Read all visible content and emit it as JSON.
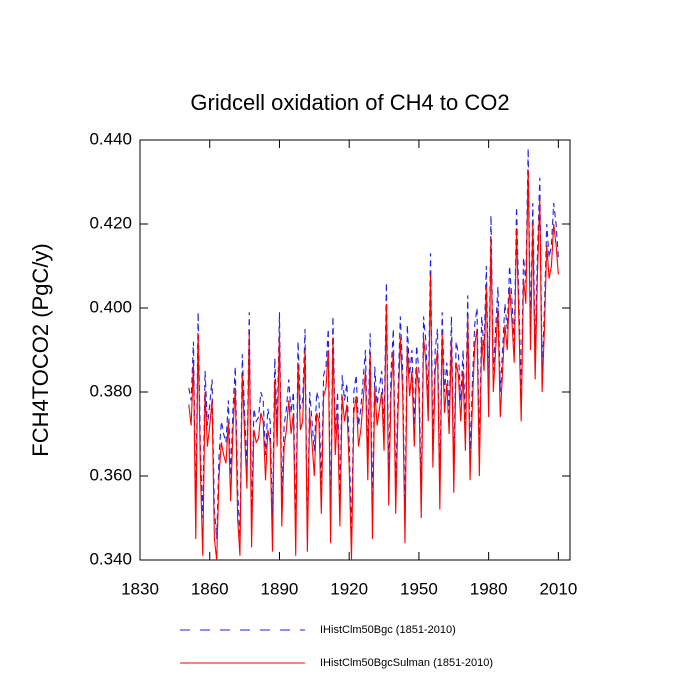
{
  "chart_data": {
    "type": "line",
    "title": "Gridcell oxidation of CH4 to CO2",
    "y_label": "FCH4TOCO2  (PgC/y)",
    "xlim": [
      1830,
      2015
    ],
    "ylim": [
      0.34,
      0.44
    ],
    "xticks": [
      1830,
      1860,
      1890,
      1920,
      1950,
      1980,
      2010
    ],
    "yticks": [
      {
        "value": 0.34,
        "label": "0.340"
      },
      {
        "value": 0.36,
        "label": "0.360"
      },
      {
        "value": 0.38,
        "label": "0.380"
      },
      {
        "value": 0.4,
        "label": "0.400"
      },
      {
        "value": 0.42,
        "label": "0.420"
      },
      {
        "value": 0.44,
        "label": "0.440"
      }
    ],
    "x": [
      1851,
      1852,
      1853,
      1854,
      1855,
      1856,
      1857,
      1858,
      1859,
      1860,
      1861,
      1862,
      1863,
      1864,
      1865,
      1866,
      1867,
      1868,
      1869,
      1870,
      1871,
      1872,
      1873,
      1874,
      1875,
      1876,
      1877,
      1878,
      1879,
      1880,
      1881,
      1882,
      1883,
      1884,
      1885,
      1886,
      1887,
      1888,
      1889,
      1890,
      1891,
      1892,
      1893,
      1894,
      1895,
      1896,
      1897,
      1898,
      1899,
      1900,
      1901,
      1902,
      1903,
      1904,
      1905,
      1906,
      1907,
      1908,
      1909,
      1910,
      1911,
      1912,
      1913,
      1914,
      1915,
      1916,
      1917,
      1918,
      1919,
      1920,
      1921,
      1922,
      1923,
      1924,
      1925,
      1926,
      1927,
      1928,
      1929,
      1930,
      1931,
      1932,
      1933,
      1934,
      1935,
      1936,
      1937,
      1938,
      1939,
      1940,
      1941,
      1942,
      1943,
      1944,
      1945,
      1946,
      1947,
      1948,
      1949,
      1950,
      1951,
      1952,
      1953,
      1954,
      1955,
      1956,
      1957,
      1958,
      1959,
      1960,
      1961,
      1962,
      1963,
      1964,
      1965,
      1966,
      1967,
      1968,
      1969,
      1970,
      1971,
      1972,
      1973,
      1974,
      1975,
      1976,
      1977,
      1978,
      1979,
      1980,
      1981,
      1982,
      1983,
      1984,
      1985,
      1986,
      1987,
      1988,
      1989,
      1990,
      1991,
      1992,
      1993,
      1994,
      1995,
      1996,
      1997,
      1998,
      1999,
      2000,
      2001,
      2002,
      2003,
      2004,
      2005,
      2006,
      2007,
      2008,
      2009,
      2010
    ],
    "series": [
      {
        "name": "IHistClm50Bgc (1851-2010)",
        "color": "#2020e0",
        "dashed": true,
        "values": [
          0.381,
          0.378,
          0.392,
          0.352,
          0.399,
          0.366,
          0.35,
          0.385,
          0.372,
          0.377,
          0.383,
          0.352,
          0.345,
          0.365,
          0.373,
          0.37,
          0.368,
          0.378,
          0.36,
          0.376,
          0.386,
          0.357,
          0.345,
          0.389,
          0.375,
          0.362,
          0.399,
          0.35,
          0.376,
          0.373,
          0.374,
          0.38,
          0.378,
          0.365,
          0.376,
          0.373,
          0.35,
          0.388,
          0.372,
          0.399,
          0.355,
          0.372,
          0.376,
          0.383,
          0.375,
          0.38,
          0.348,
          0.392,
          0.376,
          0.378,
          0.395,
          0.345,
          0.38,
          0.373,
          0.366,
          0.38,
          0.378,
          0.358,
          0.384,
          0.386,
          0.395,
          0.35,
          0.398,
          0.37,
          0.38,
          0.355,
          0.384,
          0.378,
          0.382,
          0.368,
          0.346,
          0.38,
          0.384,
          0.372,
          0.376,
          0.383,
          0.39,
          0.365,
          0.394,
          0.352,
          0.386,
          0.377,
          0.381,
          0.385,
          0.371,
          0.406,
          0.36,
          0.385,
          0.395,
          0.358,
          0.38,
          0.398,
          0.385,
          0.35,
          0.396,
          0.384,
          0.39,
          0.372,
          0.391,
          0.385,
          0.356,
          0.398,
          0.392,
          0.378,
          0.413,
          0.368,
          0.39,
          0.395,
          0.358,
          0.399,
          0.38,
          0.387,
          0.375,
          0.398,
          0.362,
          0.392,
          0.389,
          0.378,
          0.39,
          0.372,
          0.403,
          0.365,
          0.382,
          0.396,
          0.4,
          0.366,
          0.398,
          0.39,
          0.41,
          0.38,
          0.422,
          0.385,
          0.395,
          0.405,
          0.38,
          0.39,
          0.401,
          0.395,
          0.41,
          0.402,
          0.392,
          0.424,
          0.402,
          0.38,
          0.412,
          0.406,
          0.438,
          0.395,
          0.425,
          0.39,
          0.413,
          0.431,
          0.385,
          0.4,
          0.42,
          0.412,
          0.415,
          0.425,
          0.42,
          0.412
        ]
      },
      {
        "name": "IHistClm50BgcSulman (1851-2010)",
        "color": "#ff0000",
        "dashed": false,
        "values": [
          0.377,
          0.372,
          0.387,
          0.345,
          0.394,
          0.361,
          0.341,
          0.38,
          0.367,
          0.372,
          0.378,
          0.345,
          0.34,
          0.36,
          0.368,
          0.365,
          0.363,
          0.373,
          0.354,
          0.371,
          0.381,
          0.35,
          0.341,
          0.384,
          0.37,
          0.357,
          0.394,
          0.343,
          0.371,
          0.368,
          0.369,
          0.375,
          0.373,
          0.359,
          0.371,
          0.368,
          0.342,
          0.383,
          0.367,
          0.394,
          0.348,
          0.367,
          0.371,
          0.378,
          0.37,
          0.375,
          0.341,
          0.387,
          0.371,
          0.373,
          0.39,
          0.342,
          0.375,
          0.368,
          0.36,
          0.375,
          0.373,
          0.351,
          0.379,
          0.381,
          0.39,
          0.344,
          0.393,
          0.365,
          0.375,
          0.348,
          0.379,
          0.373,
          0.377,
          0.362,
          0.34,
          0.375,
          0.379,
          0.367,
          0.371,
          0.378,
          0.385,
          0.359,
          0.389,
          0.345,
          0.381,
          0.372,
          0.376,
          0.38,
          0.366,
          0.401,
          0.353,
          0.38,
          0.39,
          0.351,
          0.375,
          0.393,
          0.38,
          0.344,
          0.391,
          0.379,
          0.385,
          0.367,
          0.386,
          0.38,
          0.35,
          0.393,
          0.387,
          0.373,
          0.408,
          0.362,
          0.385,
          0.39,
          0.352,
          0.394,
          0.375,
          0.382,
          0.37,
          0.393,
          0.356,
          0.387,
          0.384,
          0.373,
          0.385,
          0.366,
          0.398,
          0.359,
          0.377,
          0.391,
          0.395,
          0.36,
          0.393,
          0.385,
          0.405,
          0.374,
          0.417,
          0.38,
          0.39,
          0.4,
          0.374,
          0.385,
          0.396,
          0.39,
          0.405,
          0.397,
          0.387,
          0.419,
          0.397,
          0.373,
          0.407,
          0.401,
          0.433,
          0.39,
          0.42,
          0.383,
          0.408,
          0.426,
          0.38,
          0.395,
          0.415,
          0.407,
          0.41,
          0.42,
          0.415,
          0.408
        ]
      }
    ]
  }
}
